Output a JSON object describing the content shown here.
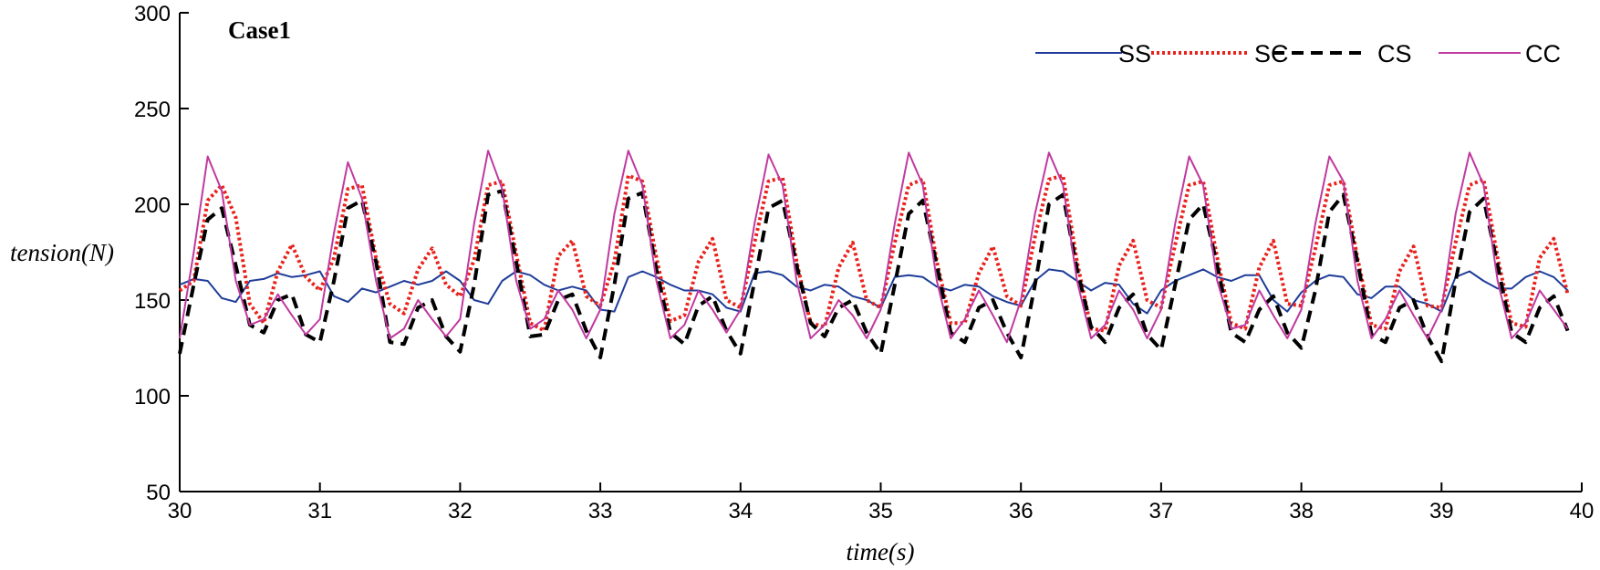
{
  "chart_data": {
    "type": "line",
    "title": "Case1",
    "xlabel": "time(s)",
    "ylabel": "tension(N)",
    "xlim": [
      30,
      40
    ],
    "ylim": [
      50,
      300
    ],
    "xticks": [
      30,
      31,
      32,
      33,
      34,
      35,
      36,
      37,
      38,
      39,
      40
    ],
    "yticks": [
      50,
      100,
      150,
      200,
      250,
      300
    ],
    "legend_position": "top-right",
    "x": [
      30.0,
      30.1,
      30.2,
      30.3,
      30.4,
      30.5,
      30.6,
      30.7,
      30.8,
      30.9,
      31.0,
      31.1,
      31.2,
      31.3,
      31.4,
      31.5,
      31.6,
      31.7,
      31.8,
      31.9,
      32.0,
      32.1,
      32.2,
      32.3,
      32.4,
      32.5,
      32.6,
      32.7,
      32.8,
      32.9,
      33.0,
      33.1,
      33.2,
      33.3,
      33.4,
      33.5,
      33.6,
      33.7,
      33.8,
      33.9,
      34.0,
      34.1,
      34.2,
      34.3,
      34.4,
      34.5,
      34.6,
      34.7,
      34.8,
      34.9,
      35.0,
      35.1,
      35.2,
      35.3,
      35.4,
      35.5,
      35.6,
      35.7,
      35.8,
      35.9,
      36.0,
      36.1,
      36.2,
      36.3,
      36.4,
      36.5,
      36.6,
      36.7,
      36.8,
      36.9,
      37.0,
      37.1,
      37.2,
      37.3,
      37.4,
      37.5,
      37.6,
      37.7,
      37.8,
      37.9,
      38.0,
      38.1,
      38.2,
      38.3,
      38.4,
      38.5,
      38.6,
      38.7,
      38.8,
      38.9,
      39.0,
      39.1,
      39.2,
      39.3,
      39.4,
      39.5,
      39.6,
      39.7,
      39.8,
      39.9
    ],
    "series": [
      {
        "name": "SS",
        "color": "#1f3d99",
        "dash": "solid",
        "width": 2,
        "values": [
          158,
          161,
          160,
          151,
          149,
          160,
          161,
          164,
          162,
          163,
          165,
          152,
          149,
          156,
          154,
          157,
          160,
          158,
          160,
          165,
          160,
          150,
          148,
          160,
          165,
          163,
          158,
          155,
          157,
          155,
          145,
          144,
          162,
          165,
          162,
          158,
          155,
          155,
          153,
          146,
          144,
          164,
          165,
          163,
          157,
          155,
          158,
          157,
          152,
          150,
          146,
          162,
          163,
          162,
          157,
          155,
          158,
          157,
          152,
          149,
          147,
          160,
          166,
          165,
          160,
          155,
          159,
          158,
          148,
          143,
          155,
          160,
          163,
          166,
          162,
          160,
          163,
          163,
          150,
          144,
          154,
          160,
          163,
          162,
          153,
          151,
          157,
          157,
          150,
          148,
          144,
          162,
          165,
          160,
          156,
          156,
          162,
          165,
          162,
          155
        ]
      },
      {
        "name": "SC",
        "color": "#e8221b",
        "dash": "dotted",
        "width": 4,
        "values": [
          155,
          160,
          202,
          210,
          193,
          148,
          138,
          165,
          179,
          162,
          155,
          172,
          208,
          210,
          172,
          148,
          143,
          166,
          177,
          158,
          152,
          171,
          210,
          212,
          174,
          138,
          134,
          173,
          181,
          152,
          147,
          170,
          215,
          212,
          172,
          139,
          142,
          170,
          182,
          150,
          146,
          180,
          212,
          214,
          170,
          138,
          136,
          167,
          180,
          150,
          146,
          180,
          210,
          213,
          170,
          138,
          138,
          164,
          178,
          152,
          147,
          183,
          213,
          215,
          170,
          135,
          134,
          168,
          181,
          150,
          146,
          179,
          210,
          212,
          172,
          138,
          135,
          167,
          181,
          148,
          147,
          177,
          210,
          212,
          172,
          137,
          135,
          165,
          178,
          147,
          146,
          180,
          210,
          213,
          172,
          138,
          136,
          172,
          182,
          153
        ]
      },
      {
        "name": "CS",
        "color": "#000000",
        "dash": "dashed",
        "width": 4,
        "values": [
          122,
          158,
          192,
          198,
          168,
          137,
          133,
          150,
          153,
          132,
          128,
          160,
          198,
          202,
          170,
          128,
          127,
          146,
          150,
          131,
          123,
          158,
          205,
          207,
          170,
          131,
          132,
          150,
          153,
          134,
          120,
          158,
          203,
          206,
          166,
          133,
          127,
          147,
          152,
          134,
          122,
          160,
          198,
          202,
          168,
          138,
          131,
          146,
          150,
          133,
          122,
          158,
          195,
          202,
          168,
          133,
          128,
          146,
          150,
          133,
          120,
          158,
          200,
          205,
          166,
          136,
          128,
          146,
          153,
          132,
          124,
          158,
          192,
          200,
          168,
          133,
          128,
          145,
          152,
          133,
          125,
          155,
          196,
          205,
          170,
          132,
          128,
          146,
          150,
          131,
          118,
          160,
          196,
          203,
          168,
          133,
          128,
          146,
          152,
          134
        ]
      },
      {
        "name": "CC",
        "color": "#c0399f",
        "dash": "solid",
        "width": 2,
        "values": [
          130,
          175,
          225,
          207,
          160,
          137,
          140,
          153,
          142,
          132,
          140,
          185,
          222,
          203,
          160,
          130,
          135,
          150,
          140,
          131,
          140,
          190,
          228,
          208,
          160,
          135,
          140,
          155,
          145,
          130,
          145,
          195,
          228,
          210,
          160,
          130,
          137,
          155,
          145,
          133,
          145,
          190,
          226,
          210,
          160,
          130,
          137,
          150,
          142,
          130,
          145,
          190,
          227,
          210,
          160,
          130,
          140,
          155,
          142,
          128,
          150,
          195,
          227,
          210,
          160,
          130,
          137,
          155,
          145,
          130,
          145,
          190,
          225,
          210,
          160,
          135,
          137,
          155,
          142,
          130,
          145,
          190,
          225,
          212,
          160,
          130,
          140,
          155,
          142,
          130,
          145,
          195,
          227,
          210,
          160,
          130,
          138,
          155,
          145,
          135
        ]
      }
    ]
  }
}
